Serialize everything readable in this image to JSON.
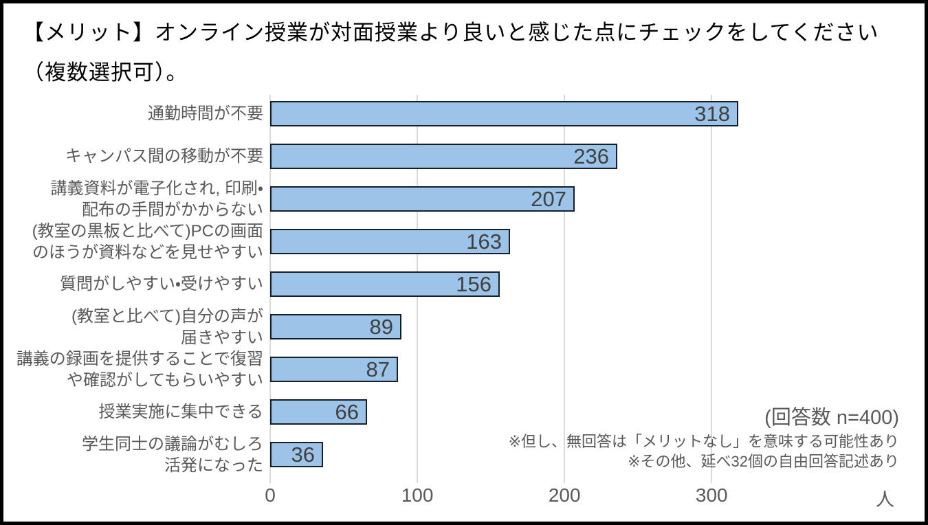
{
  "title": {
    "line1": "【メリット】オンライン授業が対面授業より良いと感じた点にチェックをしてください",
    "line2": "（複数選択可）。"
  },
  "chart_data": {
    "type": "bar",
    "orientation": "horizontal",
    "title": "【メリット】オンライン授業が対面授業より良いと感じた点にチェックをしてください（複数選択可）。",
    "categories": [
      [
        "通勤時間が不要"
      ],
      [
        "キャンパス間の移動が不要"
      ],
      [
        "講義資料が電子化され, 印刷・",
        "配布の手間がかからない"
      ],
      [
        "(教室の黒板と比べて)PCの画面",
        "のほうが資料などを見せやすい"
      ],
      [
        "質問がしやすい・受けやすい"
      ],
      [
        "(教室と比べて)自分の声が",
        "届きやすい"
      ],
      [
        "講義の録画を提供することで復習",
        "や確認がしてもらいやすい"
      ],
      [
        "授業実施に集中できる"
      ],
      [
        "学生同士の議論がむしろ",
        "活発になった"
      ]
    ],
    "values": [
      318,
      236,
      207,
      163,
      156,
      89,
      87,
      66,
      36
    ],
    "xticks": [
      0,
      100,
      200,
      300
    ],
    "xlim": [
      0,
      433
    ],
    "x_unit": "人",
    "grid": "vertical-major",
    "legend": "none",
    "colors": {
      "bar_fill": "#9CC3E8",
      "bar_border": "#161E2A",
      "gridline": "#D9D9D9",
      "category_text": "#595959",
      "tick_text": "#595959",
      "value_text": "#404040",
      "title_text": "#000000",
      "annotation_text": "#595959"
    }
  },
  "annotations": {
    "respondents": "(回答数 n=400)",
    "note1": "※但し、無回答は「メリットなし」を意味する可能性あり",
    "note2": "※その他、延べ32個の自由回答記述あり"
  }
}
